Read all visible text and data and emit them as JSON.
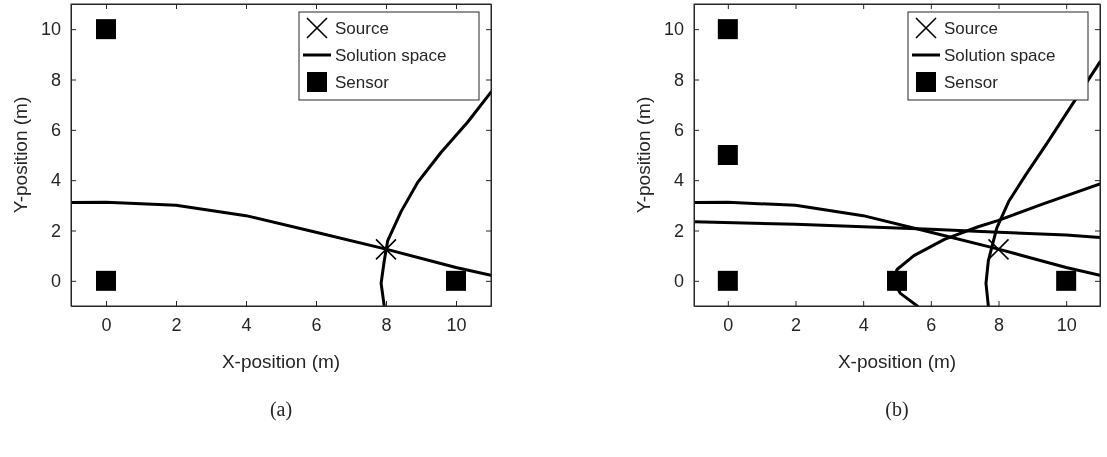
{
  "chart_data": [
    {
      "type": "scatter",
      "xlabel": "X-position (m)",
      "ylabel": "Y-position (m)",
      "xlim": [
        -1,
        11
      ],
      "ylim": [
        -1,
        11
      ],
      "xticks": [
        0,
        2,
        4,
        6,
        8,
        10
      ],
      "yticks": [
        0,
        2,
        4,
        6,
        8,
        10
      ],
      "grid": false,
      "legend": "top right",
      "annotations": [
        "(a)"
      ],
      "series": [
        {
          "name": "Source",
          "type": "scatter",
          "marker": "cross",
          "color": "#000000",
          "x": [
            8
          ],
          "values": [
            1.25
          ]
        },
        {
          "name": "Solution space",
          "type": "line",
          "color": "#000000",
          "x": [
            -1,
            0,
            2,
            4,
            6,
            8,
            10,
            11
          ],
          "values": [
            3.11,
            3.12,
            3.0,
            2.59,
            1.93,
            1.26,
            0.53,
            0.22
          ]
        },
        {
          "type": "line",
          "color": "#000000",
          "x": [
            7.95,
            7.86,
            7.95,
            8.05,
            8.43,
            8.9,
            9.57,
            10.33,
            11
          ],
          "values": [
            -1,
            -0.1,
            0.8,
            1.6,
            2.75,
            3.9,
            5.1,
            6.3,
            7.5
          ]
        },
        {
          "name": "Sensor",
          "type": "scatter",
          "marker": "square",
          "color": "#000000",
          "x": [
            0,
            0,
            10
          ],
          "values": [
            10,
            0,
            0
          ]
        }
      ]
    },
    {
      "type": "scatter",
      "xlabel": "X-position (m)",
      "ylabel": "Y-position (m)",
      "xlim": [
        -1,
        11
      ],
      "ylim": [
        -1,
        11
      ],
      "xticks": [
        0,
        2,
        4,
        6,
        8,
        10
      ],
      "yticks": [
        0,
        2,
        4,
        6,
        8,
        10
      ],
      "grid": false,
      "legend": "top right",
      "annotations": [
        "(b)"
      ],
      "series": [
        {
          "name": "Source",
          "type": "scatter",
          "marker": "cross",
          "color": "#000000",
          "x": [
            8
          ],
          "values": [
            1.25
          ]
        },
        {
          "name": "Solution space",
          "type": "line",
          "color": "#000000",
          "x": [
            -1,
            0,
            2,
            4,
            6,
            8,
            10,
            11
          ],
          "values": [
            3.11,
            3.12,
            3.0,
            2.59,
            1.93,
            1.26,
            0.53,
            0.22
          ]
        },
        {
          "type": "line",
          "color": "#000000",
          "x": [
            -1,
            2,
            4,
            6,
            8,
            10,
            11
          ],
          "values": [
            2.35,
            2.25,
            2.15,
            2.05,
            1.93,
            1.82,
            1.72
          ]
        },
        {
          "type": "line",
          "color": "#000000",
          "x": [
            5.6,
            5.1,
            4.9,
            5.0,
            5.5,
            6.4,
            7.4,
            8.0,
            9.3,
            11
          ],
          "values": [
            -1,
            -0.5,
            0,
            0.45,
            1.0,
            1.65,
            2.15,
            2.4,
            3.05,
            3.85
          ]
        },
        {
          "type": "line",
          "color": "#000000",
          "x": [
            7.7,
            7.63,
            7.7,
            7.95,
            8.3,
            8.8,
            9.45,
            10.2,
            11
          ],
          "values": [
            -1,
            -0.1,
            0.8,
            2.1,
            3.15,
            4.2,
            5.5,
            7.05,
            8.7
          ]
        },
        {
          "name": "Sensor",
          "type": "scatter",
          "marker": "square",
          "color": "#000000",
          "x": [
            0,
            0,
            0,
            5,
            10
          ],
          "values": [
            10,
            5,
            0,
            0,
            0
          ]
        }
      ]
    }
  ]
}
